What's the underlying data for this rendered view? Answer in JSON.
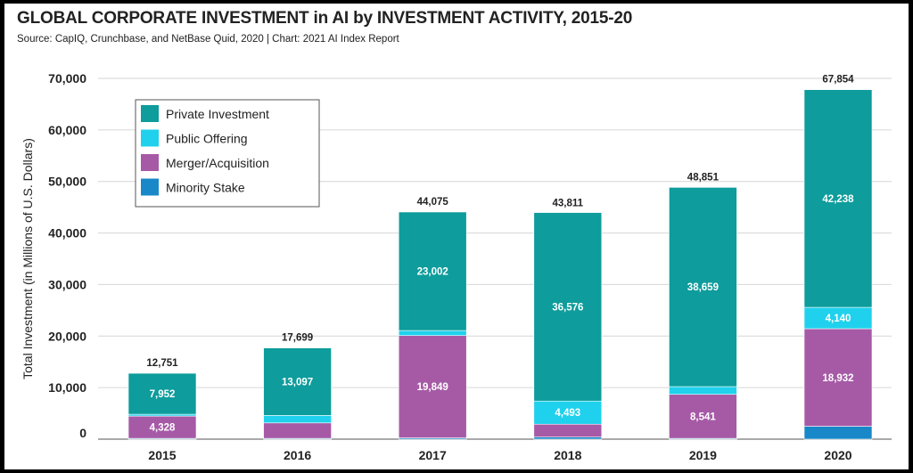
{
  "colors": {
    "private": "#0e9c9c",
    "public": "#1fd1ec",
    "merger": "#a65aa6",
    "minority": "#1888c8"
  },
  "chart_data": {
    "type": "bar",
    "stacked": true,
    "title": "GLOBAL CORPORATE INVESTMENT in AI by INVESTMENT ACTIVITY, 2015-20",
    "subtitle": "Source: CapIQ, Crunchbase, and NetBase Quid, 2020 | Chart: 2021 AI Index Report",
    "xlabel": "",
    "ylabel": "Total Investment (in Millions of U.S. Dollars)",
    "ylim": [
      0,
      70000
    ],
    "yticks": [
      0,
      10000,
      20000,
      30000,
      40000,
      50000,
      60000,
      70000
    ],
    "ytick_labels": [
      "0",
      "10,000",
      "20,000",
      "30,000",
      "40,000",
      "50,000",
      "60,000",
      "70,000"
    ],
    "grid": true,
    "legend_position": "top-left",
    "categories": [
      "2015",
      "2016",
      "2017",
      "2018",
      "2019",
      "2020"
    ],
    "totals": [
      12751,
      17699,
      44075,
      43811,
      48851,
      67854
    ],
    "total_labels": [
      "12,751",
      "17,699",
      "44,075",
      "43,811",
      "48,851",
      "67,854"
    ],
    "series": [
      {
        "name": "Minority Stake",
        "color_key": "minority",
        "values": [
          150,
          150,
          250,
          400,
          150,
          2500
        ],
        "labels": [
          "",
          "",
          "",
          "",
          "",
          ""
        ]
      },
      {
        "name": "Merger/Acquisition",
        "color_key": "merger",
        "values": [
          4328,
          3000,
          19849,
          2500,
          8541,
          18932
        ],
        "labels": [
          "4,328",
          "",
          "19,849",
          "",
          "8,541",
          "18,932"
        ]
      },
      {
        "name": "Public Offering",
        "color_key": "public",
        "values": [
          350,
          1450,
          974,
          4493,
          1501,
          4140
        ],
        "labels": [
          "",
          "",
          "",
          "4,493",
          "",
          "4,140"
        ]
      },
      {
        "name": "Private Investment",
        "color_key": "private",
        "values": [
          7952,
          13097,
          23002,
          36576,
          38659,
          42238
        ],
        "labels": [
          "7,952",
          "13,097",
          "23,002",
          "36,576",
          "38,659",
          "42,238"
        ]
      }
    ],
    "legend_order": [
      "Private Investment",
      "Public Offering",
      "Merger/Acquisition",
      "Minority Stake"
    ]
  }
}
